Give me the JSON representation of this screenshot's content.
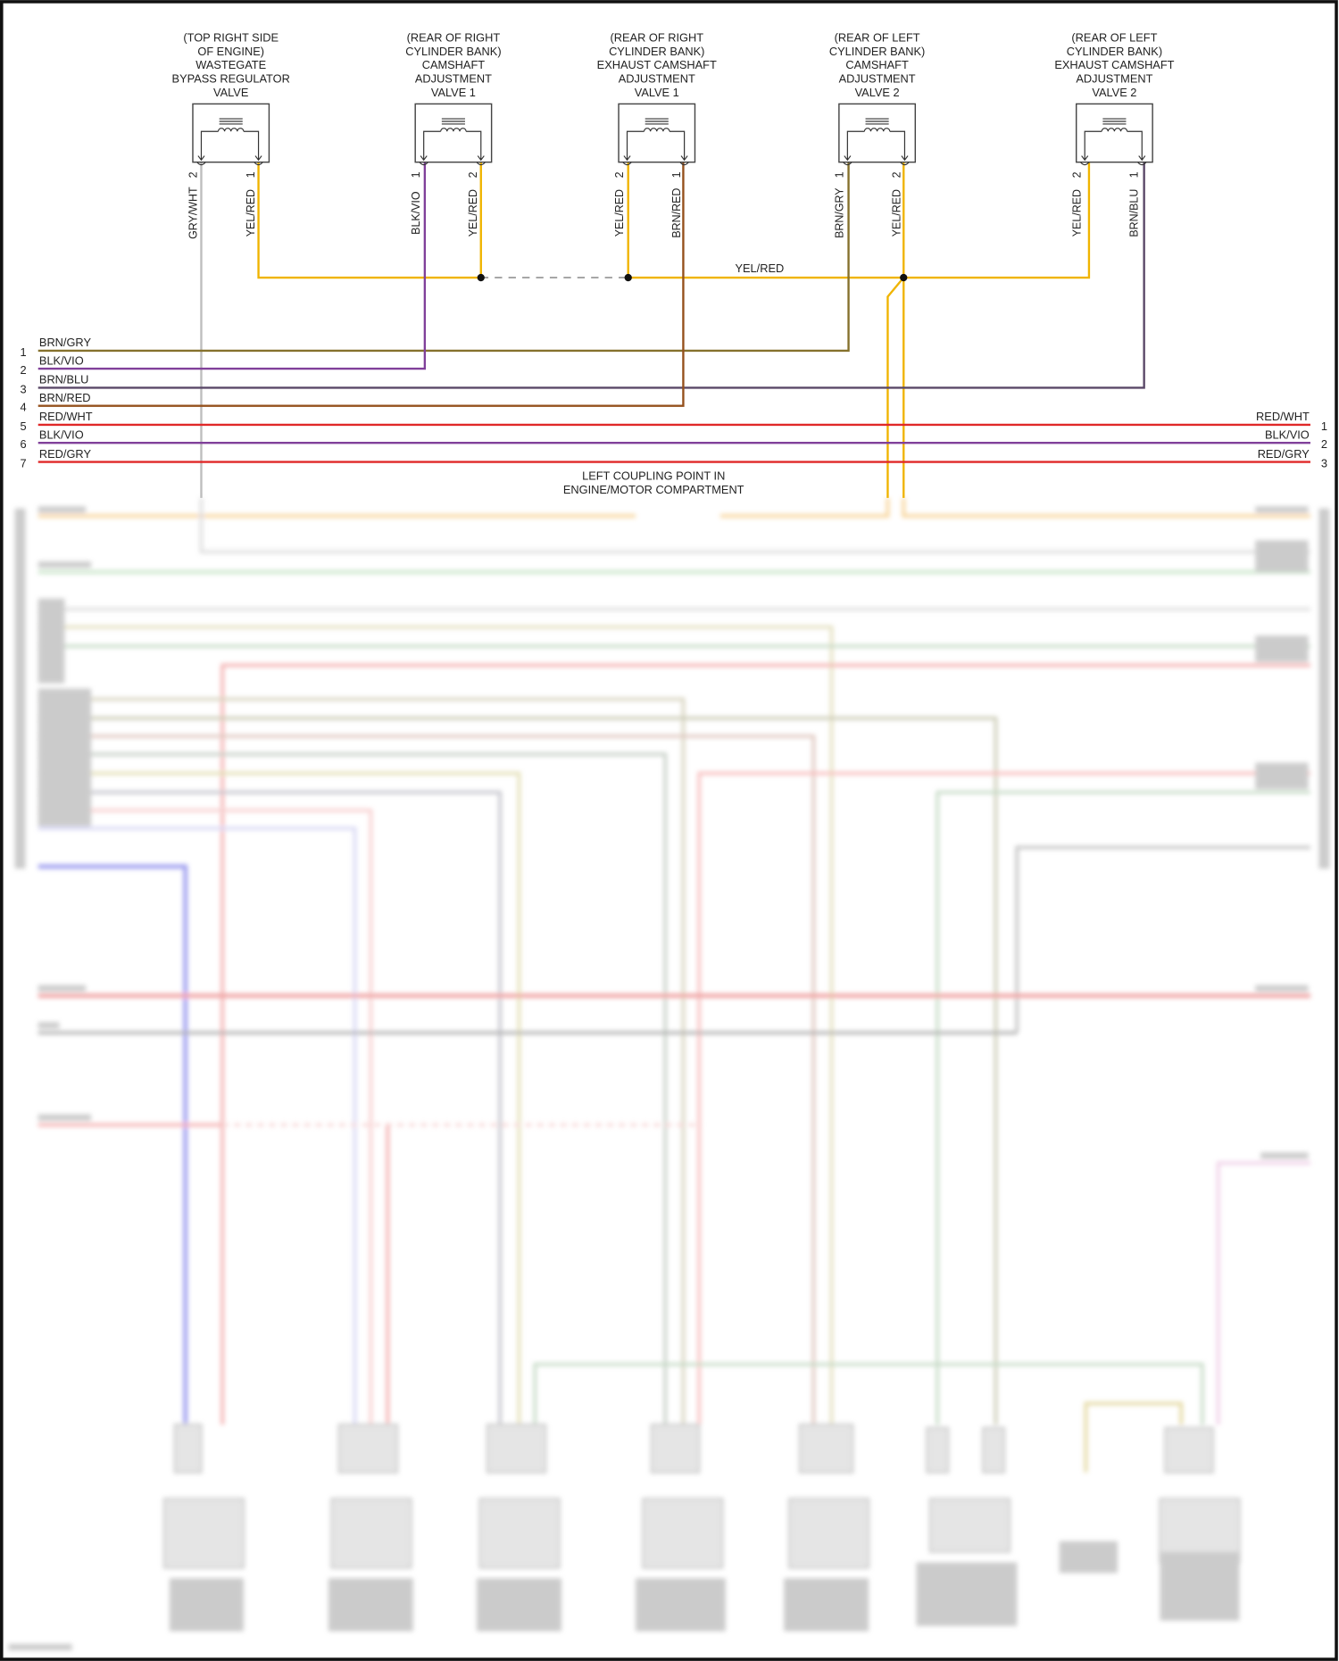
{
  "diagram": {
    "components": [
      {
        "label": [
          "(TOP RIGHT SIDE",
          "OF ENGINE)",
          "WASTEGATE",
          "BYPASS REGULATOR",
          "VALVE"
        ],
        "pins": [
          {
            "num": "2",
            "wire": "GRY/WHT"
          },
          {
            "num": "1",
            "wire": "YEL/RED"
          }
        ]
      },
      {
        "label": [
          "(REAR OF RIGHT",
          "CYLINDER BANK)",
          "CAMSHAFT",
          "ADJUSTMENT",
          "VALVE 1"
        ],
        "pins": [
          {
            "num": "1",
            "wire": "BLK/VIO"
          },
          {
            "num": "2",
            "wire": "YEL/RED"
          }
        ]
      },
      {
        "label": [
          "(REAR OF RIGHT",
          "CYLINDER BANK)",
          "EXHAUST CAMSHAFT",
          "ADJUSTMENT",
          "VALVE 1"
        ],
        "pins": [
          {
            "num": "2",
            "wire": "YEL/RED"
          },
          {
            "num": "1",
            "wire": "BRN/RED"
          }
        ]
      },
      {
        "label": [
          "(REAR OF LEFT",
          "CYLINDER BANK)",
          "CAMSHAFT",
          "ADJUSTMENT",
          "VALVE 2"
        ],
        "pins": [
          {
            "num": "1",
            "wire": "BRN/GRY"
          },
          {
            "num": "2",
            "wire": "YEL/RED"
          }
        ]
      },
      {
        "label": [
          "(REAR OF LEFT",
          "CYLINDER BANK)",
          "EXHAUST CAMSHAFT",
          "ADJUSTMENT",
          "VALVE 2"
        ],
        "pins": [
          {
            "num": "2",
            "wire": "YEL/RED"
          },
          {
            "num": "1",
            "wire": "BRN/BLU"
          }
        ]
      }
    ],
    "splice_label": "YEL/RED",
    "bus_left": [
      {
        "num": "1",
        "wire": "BRN/GRY"
      },
      {
        "num": "2",
        "wire": "BLK/VIO"
      },
      {
        "num": "3",
        "wire": "BRN/BLU"
      },
      {
        "num": "4",
        "wire": "BRN/RED"
      },
      {
        "num": "5",
        "wire": "RED/WHT"
      },
      {
        "num": "6",
        "wire": "BLK/VIO"
      },
      {
        "num": "7",
        "wire": "RED/GRY"
      }
    ],
    "bus_right": [
      {
        "num": "1",
        "wire": "RED/WHT"
      },
      {
        "num": "2",
        "wire": "BLK/VIO"
      },
      {
        "num": "3",
        "wire": "RED/GRY"
      }
    ],
    "coupling_label": [
      "LEFT COUPLING POINT IN",
      "ENGINE/MOTOR COMPARTMENT"
    ]
  },
  "colors": {
    "YEL/RED": "#f0b400",
    "GRY/WHT": "#bdbdbd",
    "BLK/VIO": "#80409a",
    "BRN/RED": "#94501c",
    "BRN/GRY": "#85712c",
    "BRN/BLU": "#5a4868",
    "RED/WHT": "#e02828",
    "RED/GRY": "#e02828"
  }
}
